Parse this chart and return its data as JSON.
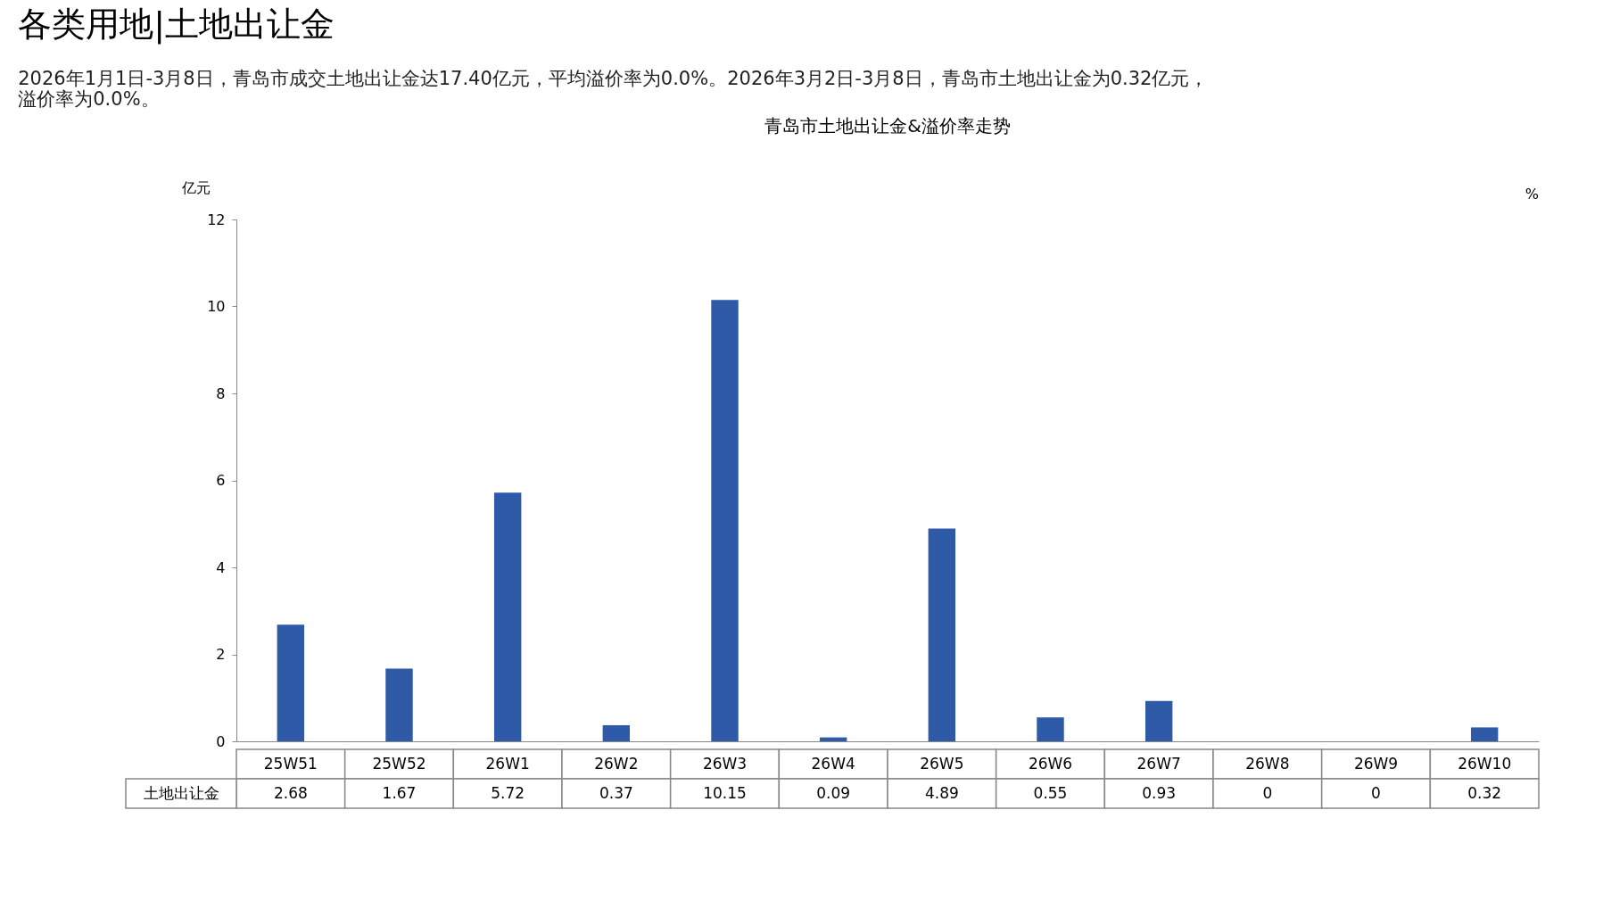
{
  "chart_data": {
    "type": "bar",
    "title": "各类用地|土地出让金",
    "subtitle": "2026年1月1日-3月8日，青岛市成交土地出让金达17.40亿元，平均溢价率为0.0%。2026年3月2日-3月8日，青岛市土地出让金为0.32亿元，溢价率为0.0%。",
    "annotations": [
      "青岛市土地出让金&溢价率走势"
    ],
    "ylabel": "亿元",
    "y2label": "%",
    "categories": [
      "25W51",
      "25W52",
      "26W1",
      "26W2",
      "26W3",
      "26W4",
      "26W5",
      "26W6",
      "26W7",
      "26W8",
      "26W9",
      "26W10"
    ],
    "series": [
      {
        "name": "土地出让金",
        "color": "#2e5aa8",
        "values": [
          2.68,
          1.67,
          5.72,
          0.37,
          10.15,
          0.09,
          4.89,
          0.55,
          0.93,
          0,
          0,
          0.32
        ]
      }
    ],
    "ylim": [
      0,
      12
    ],
    "yticks": [
      0,
      2,
      4,
      6,
      8,
      10,
      12
    ],
    "data_labels": true,
    "grid": false
  }
}
